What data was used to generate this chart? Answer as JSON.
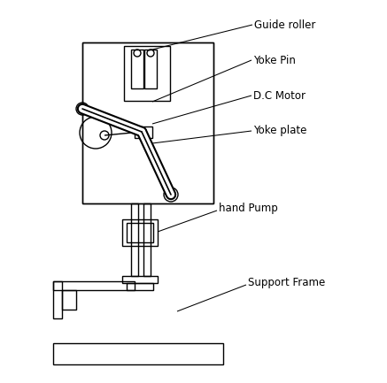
{
  "bg_color": "#ffffff",
  "line_color": "#000000",
  "lw": 1.0,
  "fig_w": 4.37,
  "fig_h": 4.33,
  "dpi": 100,
  "labels": {
    "guide_roller": "Guide roller",
    "yoke_pin": "Yoke Pin",
    "dc_motor": "D.C Motor",
    "yoke_plate": "Yoke plate",
    "hand_pump": "hand Pump",
    "support_frame": "Support Frame"
  }
}
